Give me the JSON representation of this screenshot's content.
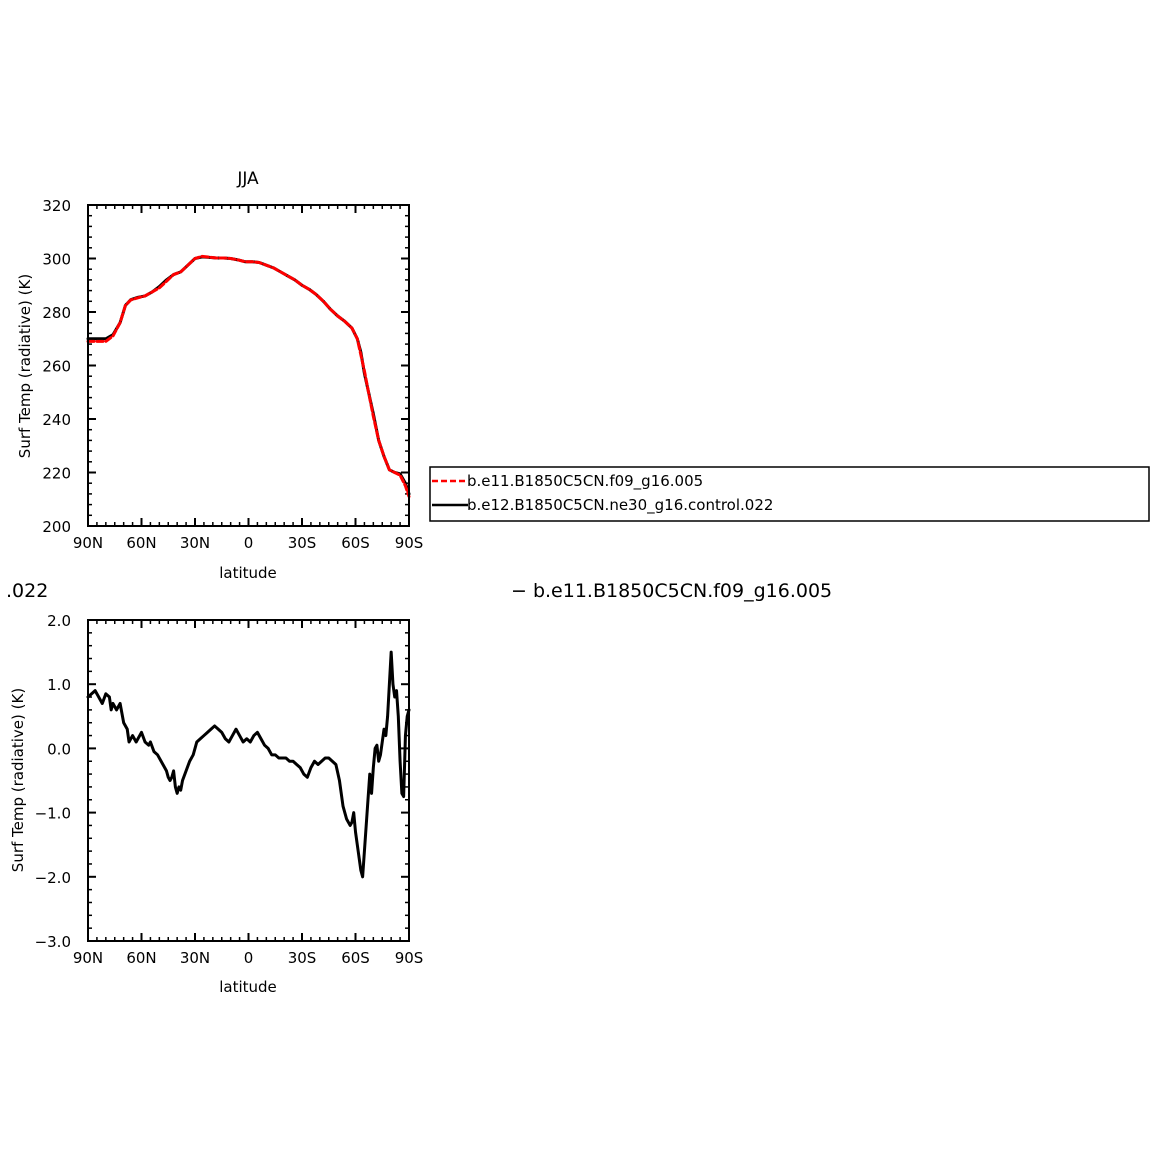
{
  "chart_data": [
    {
      "type": "line",
      "title": "JJA",
      "xlabel": "latitude",
      "ylabel": "Surf Temp (radiative) (K)",
      "x_ticks": [
        {
          "value": 90,
          "label": "90N"
        },
        {
          "value": 60,
          "label": "60N"
        },
        {
          "value": 30,
          "label": "30N"
        },
        {
          "value": 0,
          "label": "0"
        },
        {
          "value": -30,
          "label": "30S"
        },
        {
          "value": -60,
          "label": "60S"
        },
        {
          "value": -90,
          "label": "90S"
        }
      ],
      "xlim": [
        90,
        -90
      ],
      "ylim": [
        200,
        320
      ],
      "y_ticks": [
        200,
        220,
        240,
        260,
        280,
        300,
        320
      ],
      "y_tick_labels": [
        "200",
        "220",
        "240",
        "260",
        "280",
        "300",
        "320"
      ],
      "grid": false,
      "legend": {
        "placement": "right",
        "entries": [
          {
            "label": "b.e11.B1850C5CN.f09_g16.005",
            "color": "#ff0000",
            "dash": true
          },
          {
            "label": "b.e12.B1850C5CN.ne30_g16.control.022",
            "color": "#000000",
            "dash": false
          }
        ]
      },
      "series": [
        {
          "name": "b.e11.B1850C5CN.f09_g16.005",
          "color": "#ff0000",
          "dash": true,
          "x": [
            90,
            85,
            80,
            76,
            72,
            69,
            66,
            62,
            58,
            54,
            50,
            46,
            42,
            38,
            34,
            30,
            26,
            22,
            18,
            14,
            10,
            6,
            2,
            -2,
            -6,
            -10,
            -14,
            -18,
            -22,
            -26,
            -30,
            -34,
            -38,
            -42,
            -46,
            -50,
            -54,
            -58,
            -61,
            -63,
            -65,
            -67,
            -70,
            -73,
            -76,
            -79,
            -82,
            -85,
            -88,
            -90
          ],
          "values": [
            269,
            269,
            269,
            271,
            276,
            282.5,
            284.5,
            285.3,
            286,
            287.5,
            289,
            291.5,
            294,
            295,
            297.5,
            300,
            300.8,
            300.5,
            300.2,
            300.2,
            300,
            299.5,
            298.8,
            298.8,
            298.5,
            297.5,
            296.5,
            295,
            293.5,
            292,
            290,
            288.5,
            286.5,
            284,
            281,
            278.5,
            276.5,
            274,
            270,
            264,
            258,
            251,
            241,
            232,
            226,
            221,
            220,
            219,
            215,
            211
          ]
        },
        {
          "name": "b.e12.B1850C5CN.ne30_g16.control.022",
          "color": "#000000",
          "dash": false,
          "x": [
            90,
            85,
            80,
            76,
            72,
            69,
            66,
            62,
            58,
            54,
            50,
            46,
            42,
            38,
            34,
            30,
            26,
            22,
            18,
            14,
            10,
            6,
            2,
            -2,
            -6,
            -10,
            -14,
            -18,
            -22,
            -26,
            -30,
            -34,
            -38,
            -42,
            -46,
            -50,
            -54,
            -58,
            -61,
            -63,
            -65,
            -67,
            -70,
            -73,
            -76,
            -79,
            -82,
            -85,
            -88,
            -90
          ],
          "values": [
            270,
            270,
            270,
            271.5,
            276,
            282.5,
            284.6,
            285.5,
            286,
            287.5,
            289.5,
            292,
            294,
            295,
            297.5,
            300,
            300.6,
            300.4,
            300.2,
            300.2,
            300,
            299.5,
            298.8,
            298.8,
            298.5,
            297.5,
            296.5,
            295,
            293.5,
            292,
            290,
            288.5,
            286.5,
            284,
            281,
            278.5,
            276.5,
            274,
            270,
            265,
            257,
            251,
            242,
            232,
            226,
            221,
            220,
            219.5,
            216,
            212
          ]
        }
      ]
    },
    {
      "type": "line",
      "title": "",
      "xlabel": "latitude",
      "ylabel": "Surf Temp (radiative) (K)",
      "x_ticks": [
        {
          "value": 90,
          "label": "90N"
        },
        {
          "value": 60,
          "label": "60N"
        },
        {
          "value": 30,
          "label": "30N"
        },
        {
          "value": 0,
          "label": "0"
        },
        {
          "value": -30,
          "label": "30S"
        },
        {
          "value": -60,
          "label": "60S"
        },
        {
          "value": -90,
          "label": "90S"
        }
      ],
      "xlim": [
        90,
        -90
      ],
      "ylim": [
        -3.0,
        2.0
      ],
      "y_ticks": [
        -3.0,
        -2.0,
        -1.0,
        0.0,
        1.0,
        2.0
      ],
      "y_tick_labels": [
        "−3.0",
        "−2.0",
        "−1.0",
        "0.0",
        "1.0",
        "2.0"
      ],
      "grid": false,
      "series": [
        {
          "color": "#000000",
          "dash": false,
          "x": [
            90,
            86,
            84,
            82,
            80,
            78,
            77,
            76,
            74,
            72,
            70,
            68,
            67,
            65,
            63,
            61,
            60,
            58,
            56,
            55,
            53,
            51,
            49,
            47,
            46,
            45,
            44,
            43,
            42,
            41,
            40,
            39,
            38,
            37,
            35,
            33,
            31,
            29,
            27,
            25,
            23,
            21,
            19,
            17,
            15,
            13,
            11,
            9,
            7,
            5,
            3,
            1,
            -1,
            -3,
            -5,
            -7,
            -9,
            -11,
            -13,
            -15,
            -17,
            -19,
            -21,
            -23,
            -25,
            -27,
            -29,
            -31,
            -33,
            -35,
            -37,
            -39,
            -41,
            -43,
            -45,
            -47,
            -49,
            -51,
            -53,
            -55,
            -57,
            -58,
            -59,
            -60,
            -61,
            -62,
            -63,
            -64,
            -65,
            -66,
            -67,
            -68,
            -69,
            -70,
            -71,
            -72,
            -73,
            -74,
            -75,
            -76,
            -77,
            -78,
            -79,
            -80,
            -81,
            -82,
            -83,
            -84,
            -85,
            -86,
            -87,
            -88,
            -89,
            -90
          ],
          "values": [
            0.8,
            0.9,
            0.8,
            0.7,
            0.85,
            0.8,
            0.6,
            0.7,
            0.6,
            0.7,
            0.4,
            0.3,
            0.1,
            0.2,
            0.1,
            0.2,
            0.25,
            0.1,
            0.05,
            0.1,
            -0.05,
            -0.1,
            -0.2,
            -0.3,
            -0.35,
            -0.45,
            -0.5,
            -0.45,
            -0.35,
            -0.6,
            -0.7,
            -0.6,
            -0.65,
            -0.5,
            -0.35,
            -0.2,
            -0.1,
            0.1,
            0.15,
            0.2,
            0.25,
            0.3,
            0.35,
            0.3,
            0.25,
            0.15,
            0.1,
            0.2,
            0.3,
            0.2,
            0.1,
            0.15,
            0.1,
            0.2,
            0.25,
            0.15,
            0.05,
            0.0,
            -0.1,
            -0.1,
            -0.15,
            -0.15,
            -0.15,
            -0.2,
            -0.2,
            -0.25,
            -0.3,
            -0.4,
            -0.45,
            -0.3,
            -0.2,
            -0.25,
            -0.2,
            -0.15,
            -0.15,
            -0.2,
            -0.25,
            -0.5,
            -0.9,
            -1.1,
            -1.2,
            -1.15,
            -1.0,
            -1.3,
            -1.5,
            -1.7,
            -1.9,
            -2.0,
            -1.6,
            -1.2,
            -0.8,
            -0.4,
            -0.7,
            -0.3,
            0.0,
            0.05,
            -0.2,
            -0.1,
            0.1,
            0.3,
            0.2,
            0.5,
            1.0,
            1.5,
            1.0,
            0.8,
            0.9,
            0.5,
            -0.2,
            -0.7,
            -0.75,
            0.2,
            0.5,
            0.6
          ]
        }
      ]
    }
  ],
  "captions": {
    "left": ".022",
    "right": "−  b.e11.B1850C5CN.f09_g16.005"
  }
}
